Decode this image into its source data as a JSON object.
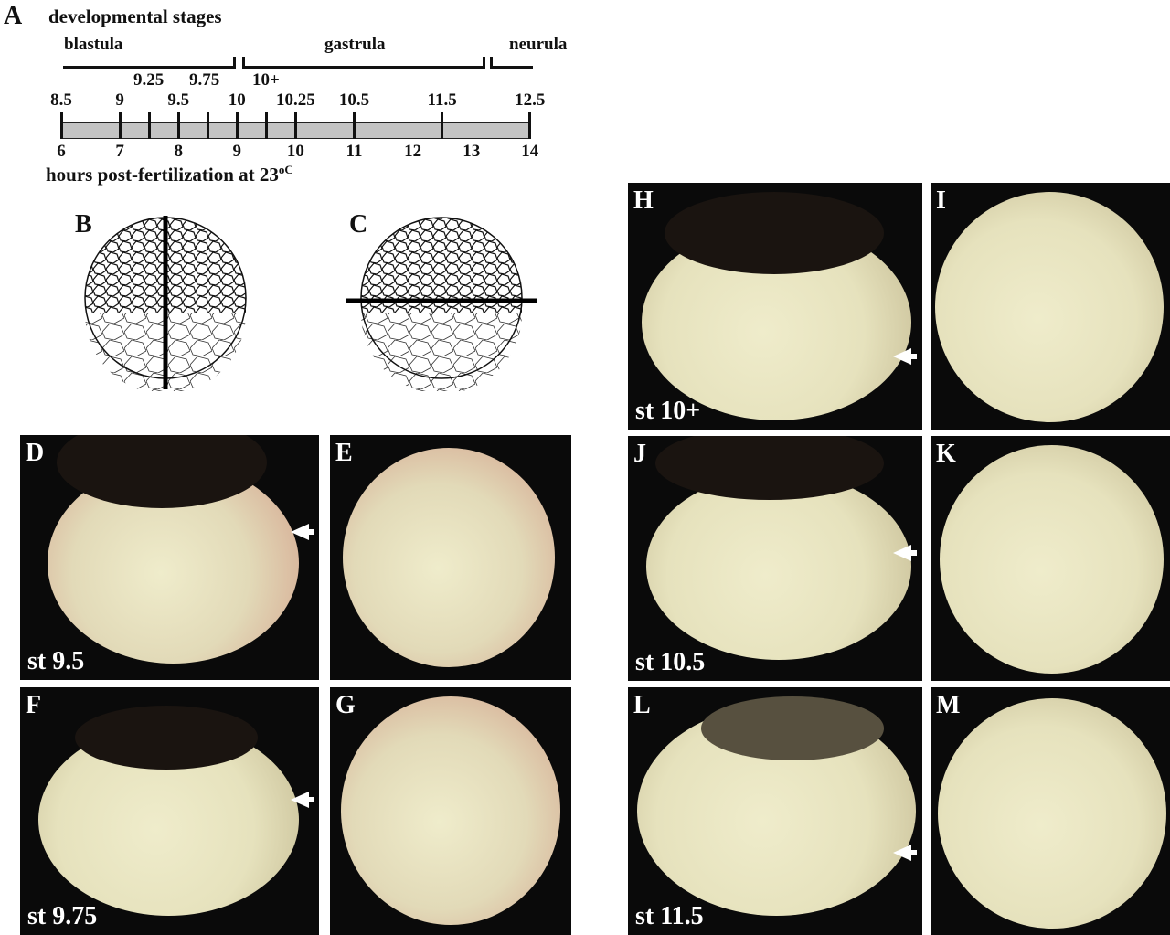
{
  "panel_a": {
    "letter": "A",
    "title": "developmental stages",
    "phases": [
      {
        "name": "blastula"
      },
      {
        "name": "gastrula"
      },
      {
        "name": "neurula"
      }
    ],
    "stage_labels_upper": [
      "9.25",
      "9.75",
      "10+"
    ],
    "stage_labels": [
      "8.5",
      "9",
      "9.5",
      "10",
      "10.25",
      "10.5",
      "11.5",
      "12.5"
    ],
    "hour_labels": [
      "6",
      "7",
      "8",
      "9",
      "10",
      "11",
      "12",
      "13",
      "14"
    ],
    "axis_label": "hours post-fertilization at 23",
    "axis_unit": "oC",
    "tick_hours": [
      6,
      7,
      7.5,
      8,
      8.5,
      9,
      9.5,
      10,
      11,
      12.5,
      14
    ]
  },
  "panels": {
    "B": "B",
    "C": "C",
    "D": {
      "letter": "D",
      "stage": "st 9.5"
    },
    "E": {
      "letter": "E"
    },
    "F": {
      "letter": "F",
      "stage": "st 9.75"
    },
    "G": {
      "letter": "G"
    },
    "H": {
      "letter": "H",
      "stage": "st 10+"
    },
    "I": {
      "letter": "I"
    },
    "J": {
      "letter": "J",
      "stage": "st 10.5"
    },
    "K": {
      "letter": "K"
    },
    "L": {
      "letter": "L",
      "stage": "st 11.5"
    },
    "M": {
      "letter": "M"
    }
  }
}
